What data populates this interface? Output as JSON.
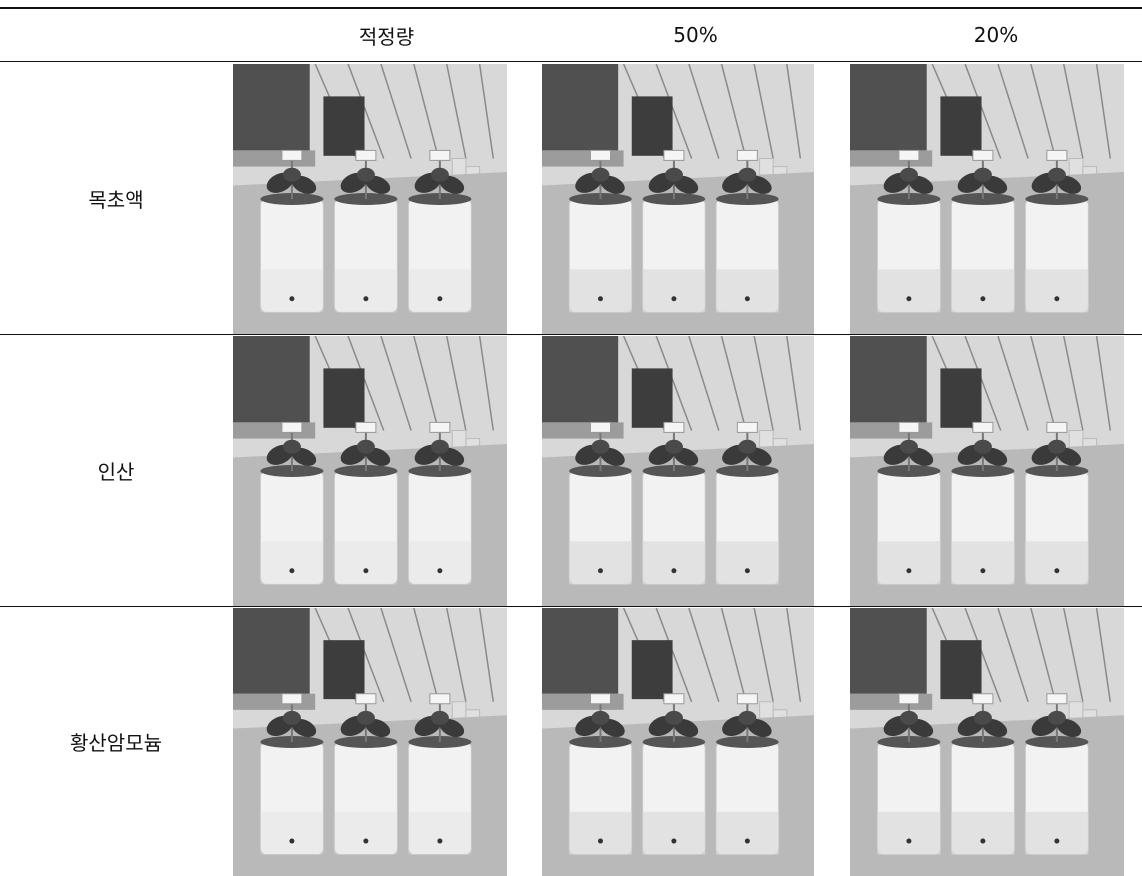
{
  "table": {
    "columns": [
      "적정량",
      "50%",
      "20%"
    ],
    "rows": [
      {
        "label": "목초액"
      },
      {
        "label": "인산"
      },
      {
        "label": "황산암모늄"
      }
    ]
  },
  "colors": {
    "rule": "#111111",
    "pot": "#f2f2f2",
    "leaf": "#3a3a3a",
    "floor": "#b9b9b9",
    "wall": "#505050"
  },
  "icons": {
    "photo": "photo-icon"
  }
}
